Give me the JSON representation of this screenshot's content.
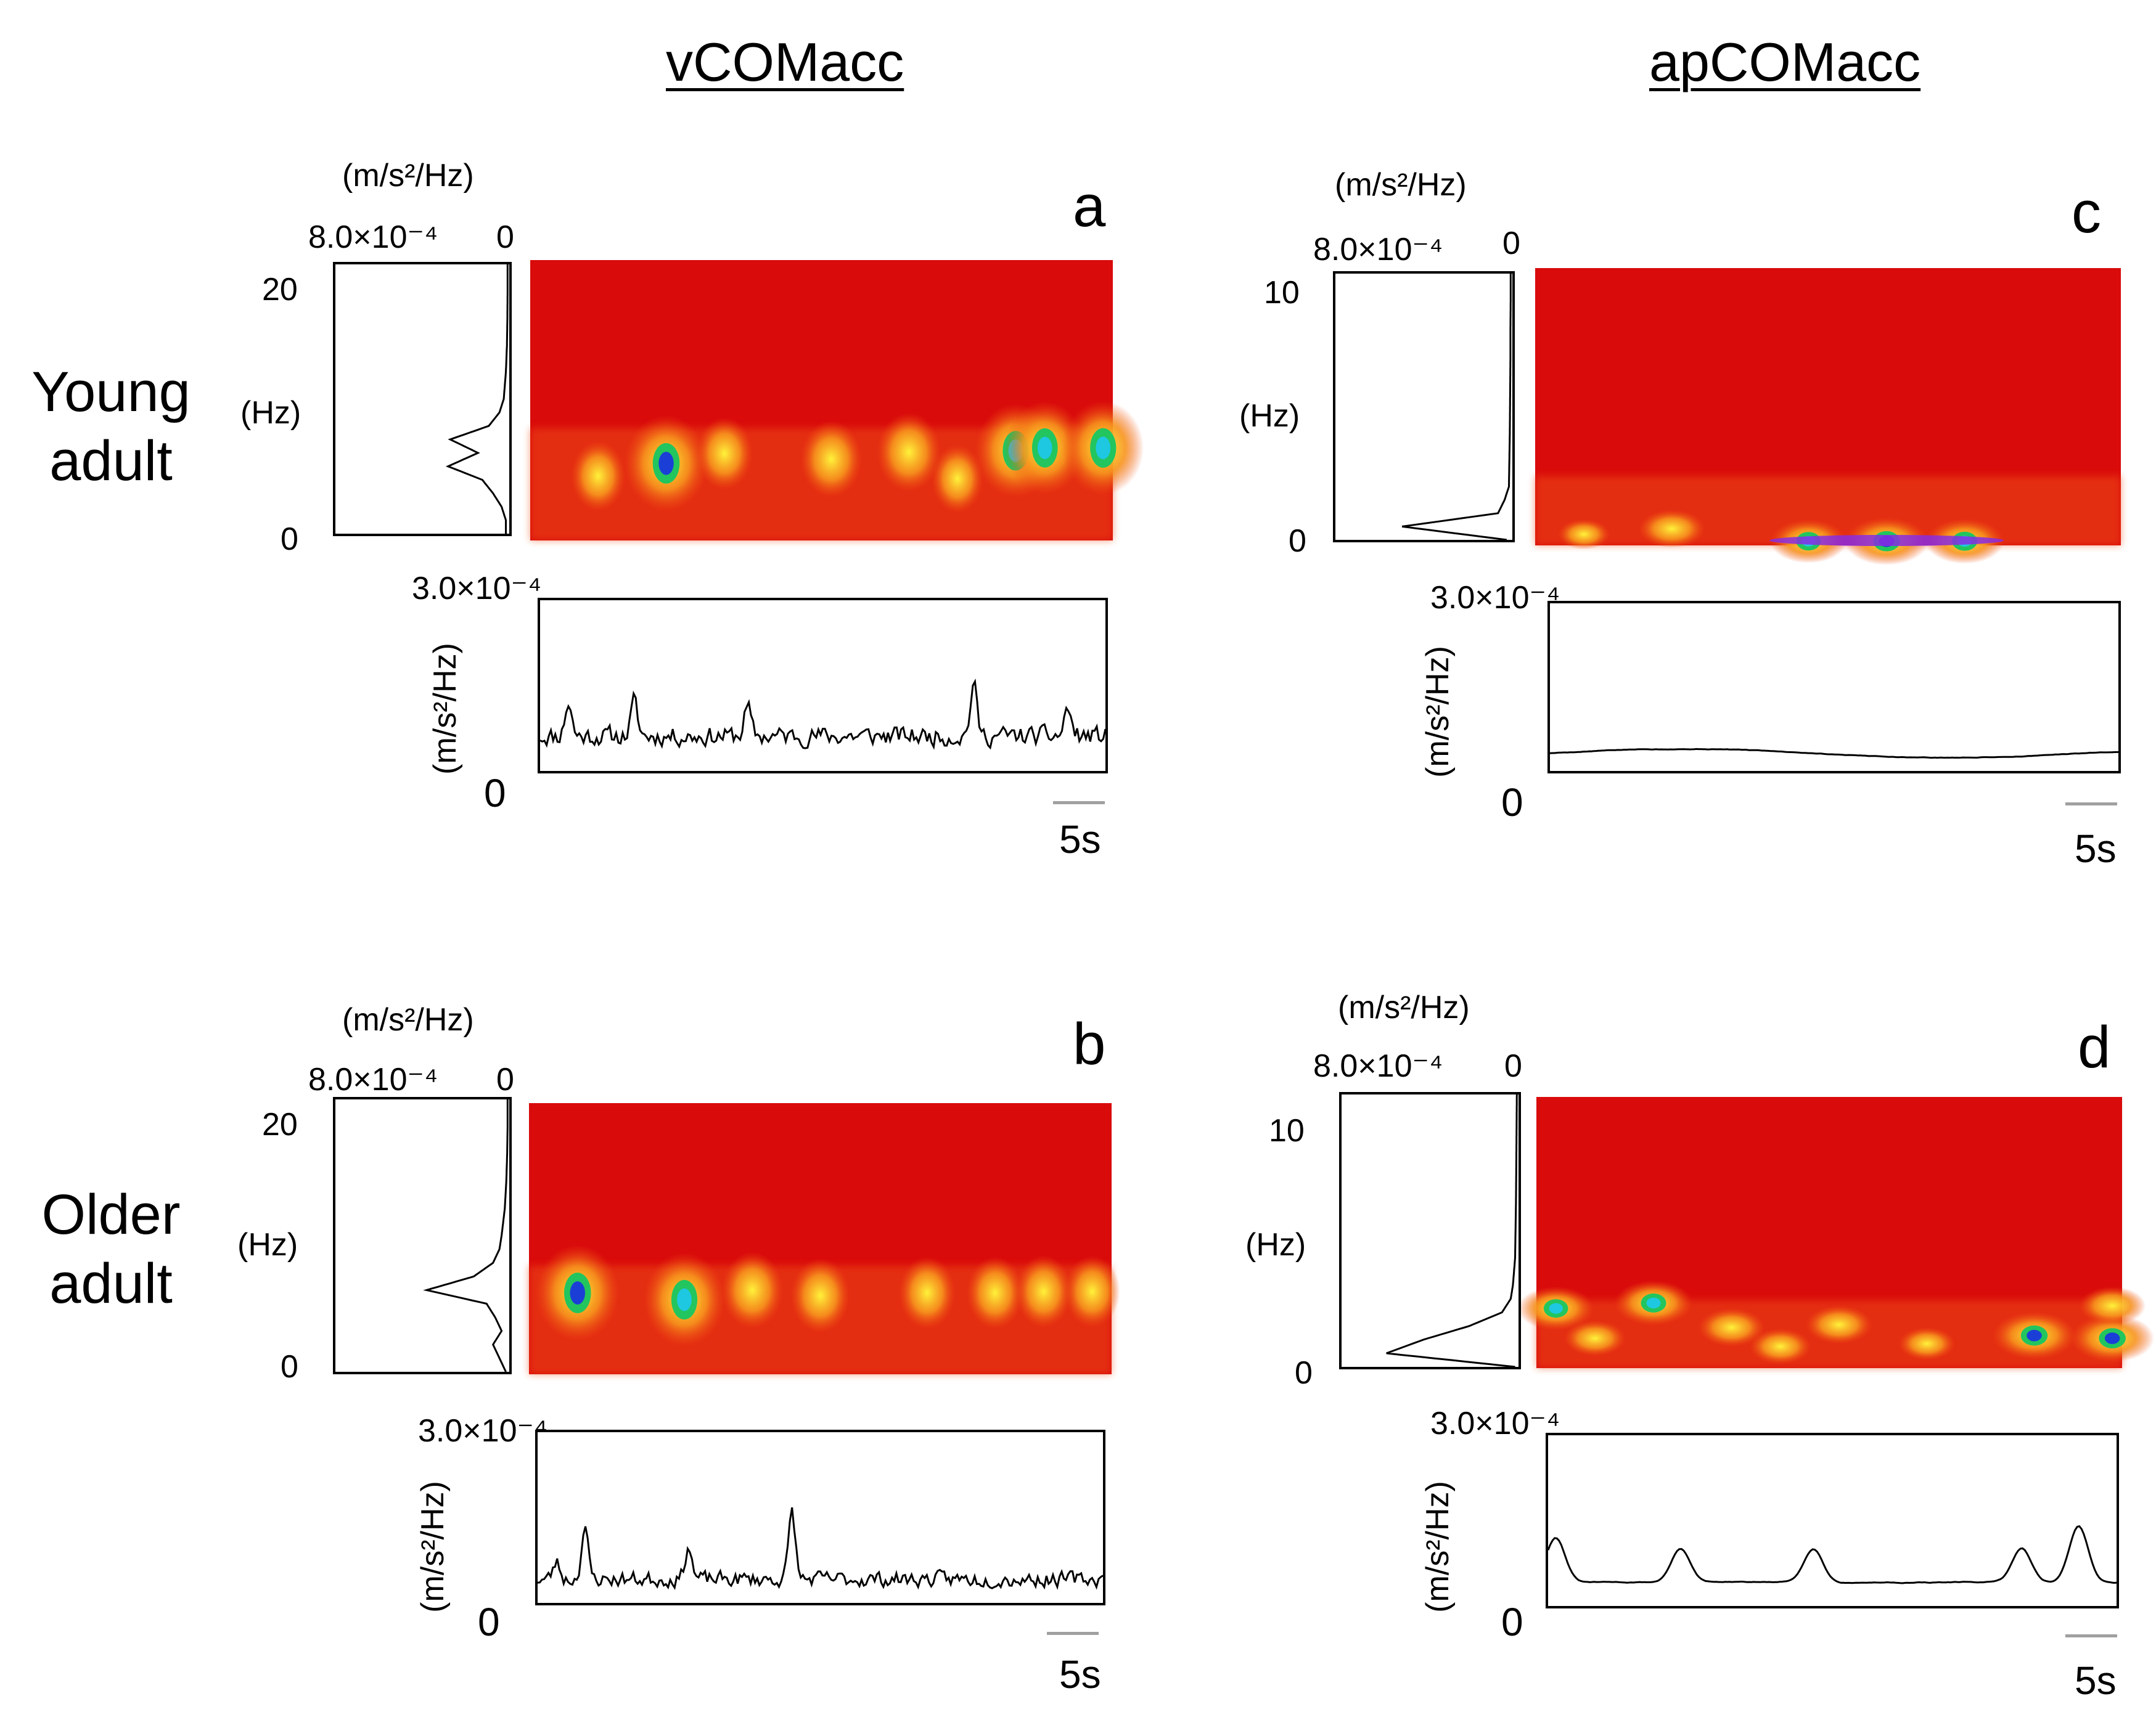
{
  "column_titles": [
    "vCOMacc",
    "apCOMacc"
  ],
  "row_labels": [
    {
      "line1": "Young",
      "line2": "adult"
    },
    {
      "line1": "Older",
      "line2": "adult"
    }
  ],
  "panels": [
    {
      "letter": "a",
      "variable": "vCOMacc",
      "group": "Young adult",
      "psd_unit": "(m/s²/Hz)",
      "psd_max": "8.0×10⁻⁴",
      "psd_zero": "0",
      "freq_max": "20",
      "freq_unit": "(Hz)",
      "freq_zero": "0",
      "ts_max": "3.0×10⁻⁴",
      "ts_unit": "(m/s²/Hz)",
      "ts_zero": "0",
      "scale": "5s"
    },
    {
      "letter": "b",
      "variable": "vCOMacc",
      "group": "Older adult",
      "psd_unit": "(m/s²/Hz)",
      "psd_max": "8.0×10⁻⁴",
      "psd_zero": "0",
      "freq_max": "20",
      "freq_unit": "(Hz)",
      "freq_zero": "0",
      "ts_max": "3.0×10⁻⁴",
      "ts_unit": "(m/s²/Hz)",
      "ts_zero": "0",
      "scale": "5s"
    },
    {
      "letter": "c",
      "variable": "apCOMacc",
      "group": "Young adult",
      "psd_unit": "(m/s²/Hz)",
      "psd_max": "8.0×10⁻⁴",
      "psd_zero": "0",
      "freq_max": "10",
      "freq_unit": "(Hz)",
      "freq_zero": "0",
      "ts_max": "3.0×10⁻⁴",
      "ts_unit": "(m/s²/Hz)",
      "ts_zero": "0",
      "scale": "5s"
    },
    {
      "letter": "d",
      "variable": "apCOMacc",
      "group": "Older adult",
      "psd_unit": "(m/s²/Hz)",
      "psd_max": "8.0×10⁻⁴",
      "psd_zero": "0",
      "freq_max": "10",
      "freq_unit": "(Hz)",
      "freq_zero": "0",
      "ts_max": "3.0×10⁻⁴",
      "ts_unit": "(m/s²/Hz)",
      "ts_zero": "0",
      "scale": "5s"
    }
  ],
  "colors": {
    "spec_bg": "#d90b0b",
    "spec_mid": "#ee4b12",
    "spec_orange": "#f7941d",
    "spec_yellow": "#fff23a",
    "spec_green": "#22c55e",
    "spec_cyan": "#1ec8e0",
    "spec_blue": "#1b3fd6",
    "spec_violet": "#8a2be2",
    "line": "#000000",
    "scale": "#a0a0a0"
  },
  "chart_data": [
    {
      "type": "heatmap",
      "panel": "a",
      "title": "vCOMacc — Young adult",
      "ylabel": "(Hz)",
      "ylim": [
        0,
        20
      ],
      "duration_s": 60,
      "blobs": [
        {
          "t": 14,
          "f": 5.5,
          "strength": 0.95
        },
        {
          "t": 20,
          "f": 6.2,
          "strength": 0.4
        },
        {
          "t": 31,
          "f": 5.8,
          "strength": 0.5
        },
        {
          "t": 39,
          "f": 6.3,
          "strength": 0.55
        },
        {
          "t": 50,
          "f": 6.4,
          "strength": 0.9
        },
        {
          "t": 53,
          "f": 6.6,
          "strength": 0.88
        },
        {
          "t": 59,
          "f": 6.6,
          "strength": 0.9
        },
        {
          "t": 7,
          "f": 4.6,
          "strength": 0.35
        },
        {
          "t": 44,
          "f": 4.4,
          "strength": 0.3
        }
      ],
      "psd": {
        "xlabel": "(m/s²/Hz)",
        "xlim": [
          0,
          0.0008
        ],
        "freq": [
          0,
          1,
          2,
          3,
          4,
          5,
          6,
          7,
          8,
          9,
          10,
          12,
          14,
          16,
          18,
          20
        ],
        "power": [
          1e-05,
          1e-05,
          3e-05,
          7e-05,
          0.00012,
          0.00028,
          0.00014,
          0.00027,
          9e-05,
          4e-05,
          2e-05,
          1e-05,
          5e-06,
          3e-06,
          2e-06,
          2e-06
        ]
      },
      "timeseries": {
        "ylabel": "(m/s²/Hz)",
        "ylim": [
          0,
          0.0003
        ],
        "mean": 6e-05,
        "variation": 2.5e-05,
        "peaks": [
          {
            "t": 3,
            "v": 0.00012
          },
          {
            "t": 10,
            "v": 0.00012
          },
          {
            "t": 22,
            "v": 0.00011
          },
          {
            "t": 46,
            "v": 0.00015
          },
          {
            "t": 56,
            "v": 0.00011
          }
        ],
        "seed": 11
      }
    },
    {
      "type": "heatmap",
      "panel": "b",
      "title": "vCOMacc — Older adult",
      "ylabel": "(Hz)",
      "ylim": [
        0,
        20
      ],
      "duration_s": 60,
      "blobs": [
        {
          "t": 5,
          "f": 6.0,
          "strength": 0.95
        },
        {
          "t": 16,
          "f": 5.5,
          "strength": 0.9
        },
        {
          "t": 23,
          "f": 6.2,
          "strength": 0.5
        },
        {
          "t": 30,
          "f": 5.8,
          "strength": 0.45
        },
        {
          "t": 41,
          "f": 6.0,
          "strength": 0.4
        },
        {
          "t": 48,
          "f": 6.0,
          "strength": 0.4
        },
        {
          "t": 53,
          "f": 6.1,
          "strength": 0.4
        },
        {
          "t": 58,
          "f": 6.1,
          "strength": 0.38
        }
      ],
      "psd": {
        "xlabel": "(m/s²/Hz)",
        "xlim": [
          0,
          0.0008
        ],
        "freq": [
          0,
          1,
          2,
          3,
          4,
          5,
          6,
          7,
          8,
          9,
          10,
          12,
          14,
          16,
          18,
          20
        ],
        "power": [
          1e-05,
          4e-05,
          7e-05,
          3e-05,
          6e-05,
          0.0001,
          0.00038,
          0.00016,
          7e-05,
          4e-05,
          3e-05,
          1.5e-05,
          8e-06,
          4e-06,
          2e-06,
          2e-06
        ]
      },
      "timeseries": {
        "ylabel": "(m/s²/Hz)",
        "ylim": [
          0,
          0.0003
        ],
        "mean": 4e-05,
        "variation": 2e-05,
        "peaks": [
          {
            "t": 5,
            "v": 0.00013
          },
          {
            "t": 16,
            "v": 0.0001
          },
          {
            "t": 27,
            "v": 0.00016
          },
          {
            "t": 2,
            "v": 7e-05
          }
        ],
        "seed": 23
      }
    },
    {
      "type": "heatmap",
      "panel": "c",
      "title": "apCOMacc — Young adult",
      "ylabel": "(Hz)",
      "ylim": [
        0,
        10
      ],
      "duration_s": 60,
      "blobs": [
        {
          "t": 14,
          "f": 0.6,
          "strength": 0.6
        },
        {
          "t": 28,
          "f": 0.15,
          "strength": 0.8
        },
        {
          "t": 36,
          "f": 0.15,
          "strength": 0.95
        },
        {
          "t": 44,
          "f": 0.15,
          "strength": 0.85
        },
        {
          "t": 5,
          "f": 0.4,
          "strength": 0.3
        }
      ],
      "psd": {
        "xlabel": "(m/s²/Hz)",
        "xlim": [
          0,
          0.0008
        ],
        "freq": [
          0,
          0.5,
          1,
          1.5,
          2,
          3,
          4,
          5,
          6,
          7,
          8,
          9,
          10
        ],
        "power": [
          2e-05,
          0.0005,
          6e-05,
          3e-05,
          1e-05,
          8e-06,
          6e-06,
          5e-06,
          4e-06,
          3e-06,
          3e-06,
          2e-06,
          2e-06
        ]
      },
      "timeseries": {
        "ylabel": "(m/s²/Hz)",
        "ylim": [
          0,
          0.0003
        ],
        "mean": 3e-05,
        "variation": 4e-06,
        "peaks": [],
        "seed": 5
      }
    },
    {
      "type": "heatmap",
      "panel": "d",
      "title": "apCOMacc — Older adult",
      "ylabel": "(Hz)",
      "ylim": [
        0,
        10
      ],
      "duration_s": 60,
      "blobs": [
        {
          "t": 2,
          "f": 2.2,
          "strength": 0.8
        },
        {
          "t": 12,
          "f": 2.4,
          "strength": 0.85
        },
        {
          "t": 20,
          "f": 1.5,
          "strength": 0.6
        },
        {
          "t": 31,
          "f": 1.6,
          "strength": 0.6
        },
        {
          "t": 51,
          "f": 1.2,
          "strength": 0.95
        },
        {
          "t": 59,
          "f": 1.1,
          "strength": 0.95
        },
        {
          "t": 59,
          "f": 2.3,
          "strength": 0.6
        },
        {
          "t": 6,
          "f": 1.1,
          "strength": 0.5
        },
        {
          "t": 25,
          "f": 0.8,
          "strength": 0.5
        },
        {
          "t": 40,
          "f": 0.9,
          "strength": 0.4
        }
      ],
      "psd": {
        "xlabel": "(m/s²/Hz)",
        "xlim": [
          0,
          0.0008
        ],
        "freq": [
          0,
          0.5,
          1,
          1.5,
          2,
          2.5,
          3,
          4,
          5,
          6,
          7,
          8,
          9,
          10
        ],
        "power": [
          1e-05,
          0.0006,
          0.00043,
          0.00022,
          7e-05,
          3e-05,
          2e-05,
          1e-05,
          8e-06,
          6e-06,
          5e-06,
          4e-06,
          3e-06,
          2e-06
        ]
      },
      "timeseries": {
        "ylabel": "(m/s²/Hz)",
        "ylim": [
          0,
          0.0003
        ],
        "mean": 4e-05,
        "variation": 6e-06,
        "peaks": [
          {
            "t": 0.8,
            "v": 0.00012
          },
          {
            "t": 14,
            "v": 0.0001
          },
          {
            "t": 28,
            "v": 0.0001
          },
          {
            "t": 50,
            "v": 0.0001
          },
          {
            "t": 56,
            "v": 0.00014
          }
        ],
        "seed": 31
      }
    }
  ]
}
